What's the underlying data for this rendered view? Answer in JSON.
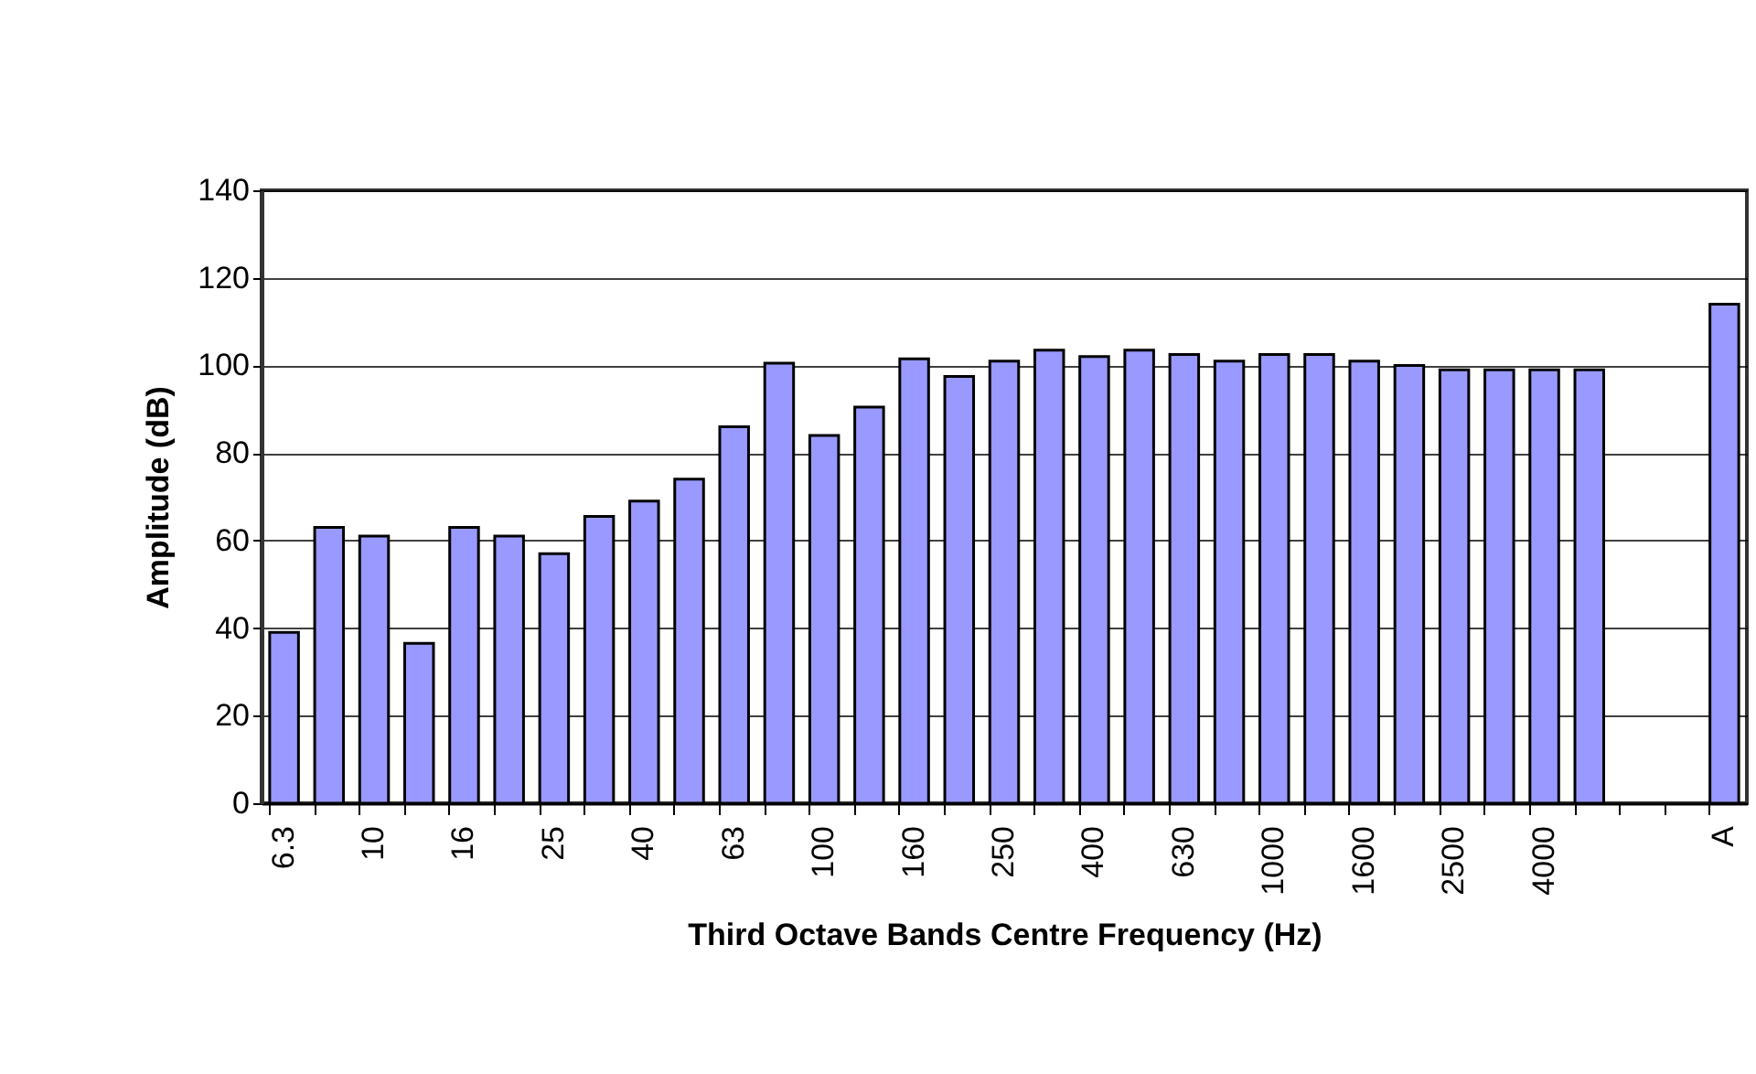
{
  "chart_data": {
    "type": "bar",
    "xlabel": "Third Octave Bands Centre Frequency (Hz)",
    "ylabel": "Amplitude (dB)",
    "categories": [
      "6.3",
      null,
      "10",
      null,
      "16",
      null,
      "25",
      null,
      "40",
      null,
      "63",
      null,
      "100",
      null,
      "160",
      null,
      "250",
      null,
      "400",
      null,
      "630",
      null,
      "1000",
      null,
      "1600",
      null,
      "2500",
      null,
      "4000",
      null,
      null,
      null,
      "A"
    ],
    "values": [
      39,
      63,
      61,
      36.5,
      63,
      61,
      57,
      65.5,
      69,
      74,
      86,
      100.5,
      84,
      90.5,
      101.5,
      97.5,
      101,
      103.5,
      102,
      103.5,
      102.5,
      101,
      102.5,
      102.5,
      101,
      100,
      99,
      99,
      99,
      99,
      null,
      null,
      114
    ],
    "color": "#9999ff",
    "ylim": [
      0,
      140
    ],
    "yticks": [
      0,
      20,
      40,
      60,
      80,
      100,
      120,
      140
    ],
    "grid": "y"
  }
}
